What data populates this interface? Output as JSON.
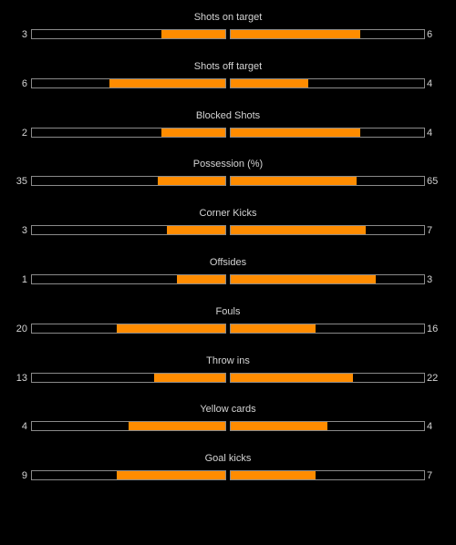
{
  "accent_color": "#ff8c00",
  "stats": [
    {
      "label": "Shots on target",
      "home": "3",
      "away": "6",
      "home_fraction": 0.33,
      "away_fraction": 0.67
    },
    {
      "label": "Shots off target",
      "home": "6",
      "away": "4",
      "home_fraction": 0.6,
      "away_fraction": 0.4
    },
    {
      "label": "Blocked Shots",
      "home": "2",
      "away": "4",
      "home_fraction": 0.33,
      "away_fraction": 0.67
    },
    {
      "label": "Possession (%)",
      "home": "35",
      "away": "65",
      "home_fraction": 0.35,
      "away_fraction": 0.65
    },
    {
      "label": "Corner Kicks",
      "home": "3",
      "away": "7",
      "home_fraction": 0.3,
      "away_fraction": 0.7
    },
    {
      "label": "Offsides",
      "home": "1",
      "away": "3",
      "home_fraction": 0.25,
      "away_fraction": 0.75
    },
    {
      "label": "Fouls",
      "home": "20",
      "away": "16",
      "home_fraction": 0.56,
      "away_fraction": 0.44
    },
    {
      "label": "Throw ins",
      "home": "13",
      "away": "22",
      "home_fraction": 0.37,
      "away_fraction": 0.63
    },
    {
      "label": "Yellow cards",
      "home": "4",
      "away": "4",
      "home_fraction": 0.5,
      "away_fraction": 0.5
    },
    {
      "label": "Goal kicks",
      "home": "9",
      "away": "7",
      "home_fraction": 0.56,
      "away_fraction": 0.44
    }
  ]
}
